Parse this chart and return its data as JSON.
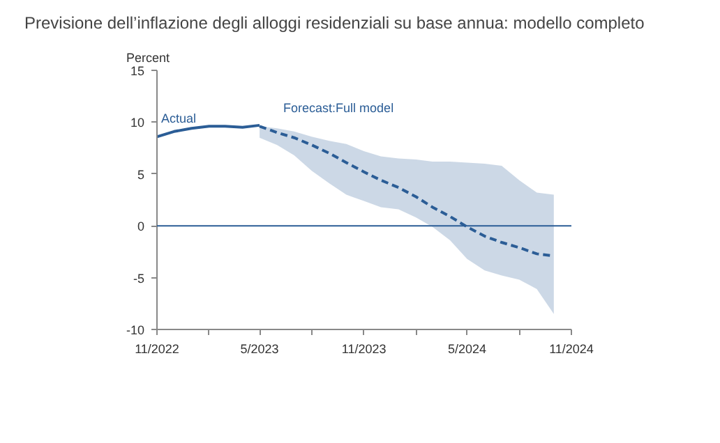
{
  "chart_data": {
    "type": "line",
    "title": "Previsione dell’inflazione degli alloggi residenziali su base annua: modello completo",
    "ylabel": "Percent",
    "xlim": [
      "2022-11",
      "2024-11"
    ],
    "xticks": [
      {
        "value": "2022-11",
        "label": "11/2022"
      },
      {
        "value": "2023-02",
        "label": null
      },
      {
        "value": "2023-05",
        "label": "5/2023"
      },
      {
        "value": "2023-08",
        "label": null
      },
      {
        "value": "2023-11",
        "label": "11/2023"
      },
      {
        "value": "2024-02",
        "label": null
      },
      {
        "value": "2024-05",
        "label": "5/2024"
      },
      {
        "value": "2024-08",
        "label": null
      },
      {
        "value": "2024-11",
        "label": "11/2024"
      }
    ],
    "ylim": [
      -10,
      15
    ],
    "yticks": [
      -10,
      -5,
      0,
      5,
      10,
      15
    ],
    "grid": false,
    "series": [
      {
        "name": "Actual",
        "color": "#2b5d96",
        "line_style": "solid",
        "x": [
          "2022-11",
          "2022-12",
          "2023-01",
          "2023-02",
          "2023-03",
          "2023-04",
          "2023-05"
        ],
        "values": [
          8.6,
          9.1,
          9.4,
          9.6,
          9.6,
          9.5,
          9.7
        ]
      },
      {
        "name": "Forecast:Full model",
        "color": "#2b5d96",
        "line_style": "dashed",
        "x": [
          "2023-05",
          "2023-06",
          "2023-07",
          "2023-08",
          "2023-09",
          "2023-10",
          "2023-11",
          "2023-12",
          "2024-01",
          "2024-02",
          "2024-03",
          "2024-04",
          "2024-05",
          "2024-06",
          "2024-07",
          "2024-08",
          "2024-09",
          "2024-10"
        ],
        "values": [
          9.6,
          9.0,
          8.5,
          7.8,
          7.0,
          6.1,
          5.2,
          4.4,
          3.7,
          2.8,
          1.8,
          0.9,
          -0.1,
          -1.0,
          -1.6,
          -2.1,
          -2.7,
          -2.9
        ],
        "lower": [
          8.5,
          7.8,
          6.8,
          5.3,
          4.1,
          3.0,
          2.4,
          1.8,
          1.6,
          0.8,
          -0.1,
          -1.4,
          -3.2,
          -4.3,
          -4.8,
          -5.2,
          -6.1,
          -8.5
        ],
        "upper": [
          9.6,
          9.4,
          9.1,
          8.6,
          8.2,
          7.9,
          7.2,
          6.7,
          6.5,
          6.4,
          6.2,
          6.2,
          6.1,
          6.0,
          5.8,
          4.4,
          3.2,
          3.0
        ]
      }
    ],
    "ref_lines": [
      {
        "axis": "y",
        "value": 0,
        "color": "#2b5d96"
      }
    ]
  }
}
